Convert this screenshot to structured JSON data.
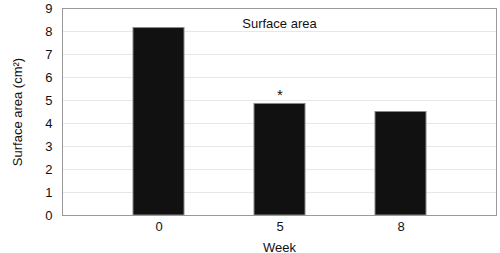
{
  "chart_data": {
    "type": "bar",
    "title": "Surface area",
    "categories": [
      "0",
      "5",
      "8"
    ],
    "values": [
      8.15,
      4.85,
      4.5
    ],
    "color": "#111111",
    "x_label": "Week",
    "y_label": "Surface area (cm²)",
    "ylim": [
      0,
      9
    ],
    "yticks": [
      0,
      1,
      2,
      3,
      4,
      5,
      6,
      7,
      8,
      9
    ],
    "grid": true,
    "annotations": [
      {
        "category": "5",
        "text": "*"
      }
    ]
  }
}
